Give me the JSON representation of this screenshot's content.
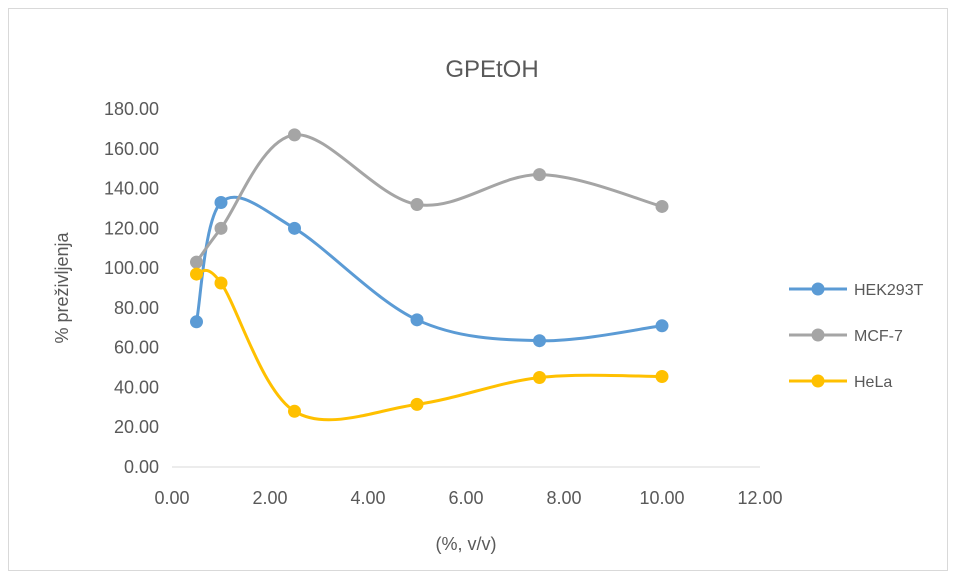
{
  "chart_data": {
    "type": "line",
    "title": "GPEtOH",
    "xlabel": "(%, v/v)",
    "ylabel": "% preživljenja",
    "xlim": [
      0,
      12
    ],
    "ylim": [
      0,
      180
    ],
    "x_ticks": [
      "0.00",
      "2.00",
      "4.00",
      "6.00",
      "8.00",
      "10.00",
      "12.00"
    ],
    "y_ticks": [
      "0.00",
      "20.00",
      "40.00",
      "60.00",
      "80.00",
      "100.00",
      "120.00",
      "140.00",
      "160.00",
      "180.00"
    ],
    "x_tick_values": [
      0,
      2,
      4,
      6,
      8,
      10,
      12
    ],
    "y_tick_values": [
      0,
      20,
      40,
      60,
      80,
      100,
      120,
      140,
      160,
      180
    ],
    "x": [
      0.5,
      1,
      2.5,
      5,
      7.5,
      10
    ],
    "smoothed": true,
    "grid": false,
    "legend_position": "right",
    "series": [
      {
        "name": "HEK293T",
        "color": "#5b9bd5",
        "values": [
          73,
          133,
          120,
          74,
          63.5,
          71
        ]
      },
      {
        "name": "MCF-7",
        "color": "#a5a5a5",
        "values": [
          103,
          120,
          167,
          132,
          147,
          131
        ]
      },
      {
        "name": "HeLa",
        "color": "#ffc000",
        "values": [
          97,
          92.5,
          28,
          31.5,
          45,
          45.5
        ]
      }
    ]
  }
}
